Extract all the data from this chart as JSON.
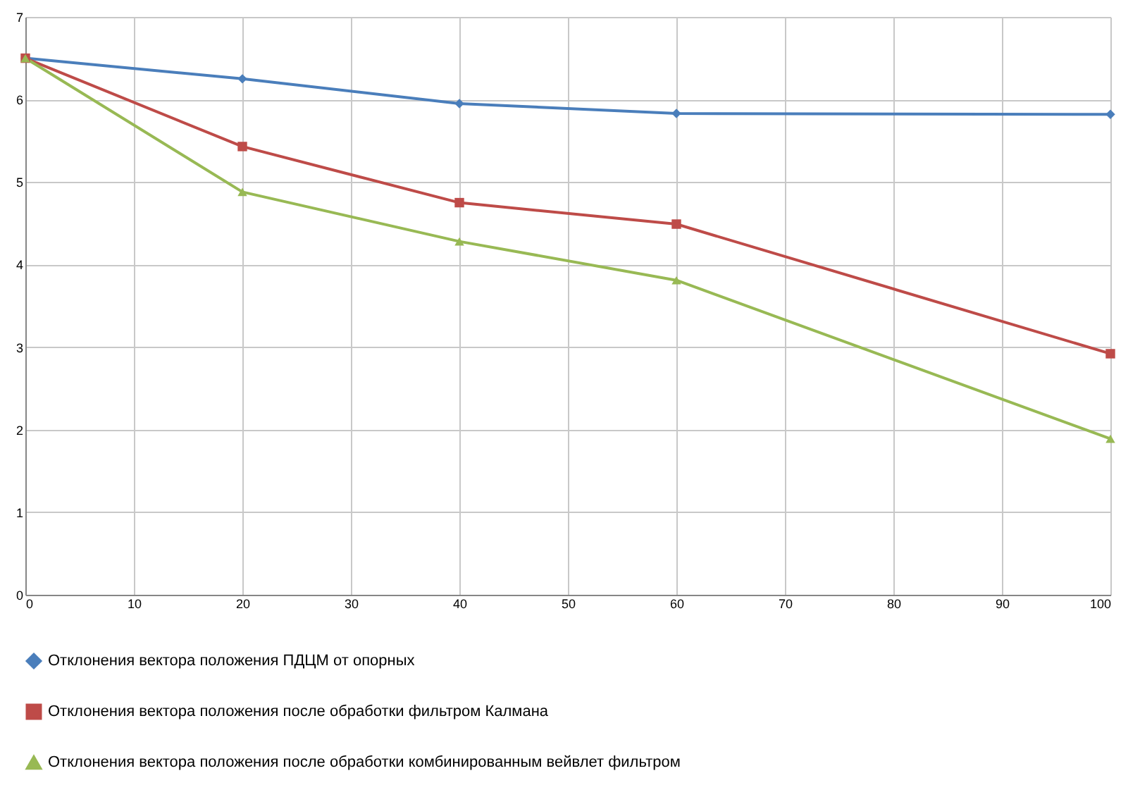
{
  "chart_data": {
    "type": "line",
    "x": [
      0,
      20,
      40,
      60,
      100
    ],
    "series": [
      {
        "name": "Отклонения вектора положения ПДЦМ от опорных",
        "color": "#4a7ebb",
        "marker": "diamond",
        "values": [
          6.5,
          6.25,
          5.95,
          5.83,
          5.82
        ]
      },
      {
        "name": "Отклонения вектора положения после обработки фильтром Калмана",
        "color": "#be4b48",
        "marker": "square",
        "values": [
          6.5,
          5.43,
          4.75,
          4.49,
          2.92
        ]
      },
      {
        "name": "Отклонения вектора положения после обработки комбинированным вейвлет фильтром",
        "color": "#98b954",
        "marker": "triangle",
        "values": [
          6.5,
          4.88,
          4.28,
          3.81,
          1.89
        ]
      }
    ],
    "xlim": [
      0,
      100
    ],
    "xticks": [
      0,
      10,
      20,
      30,
      40,
      50,
      60,
      70,
      80,
      90,
      100
    ],
    "ylim": [
      0,
      7
    ],
    "yticks": [
      0,
      1,
      2,
      3,
      4,
      5,
      6,
      7
    ],
    "grid": true,
    "legend": "bottom"
  }
}
